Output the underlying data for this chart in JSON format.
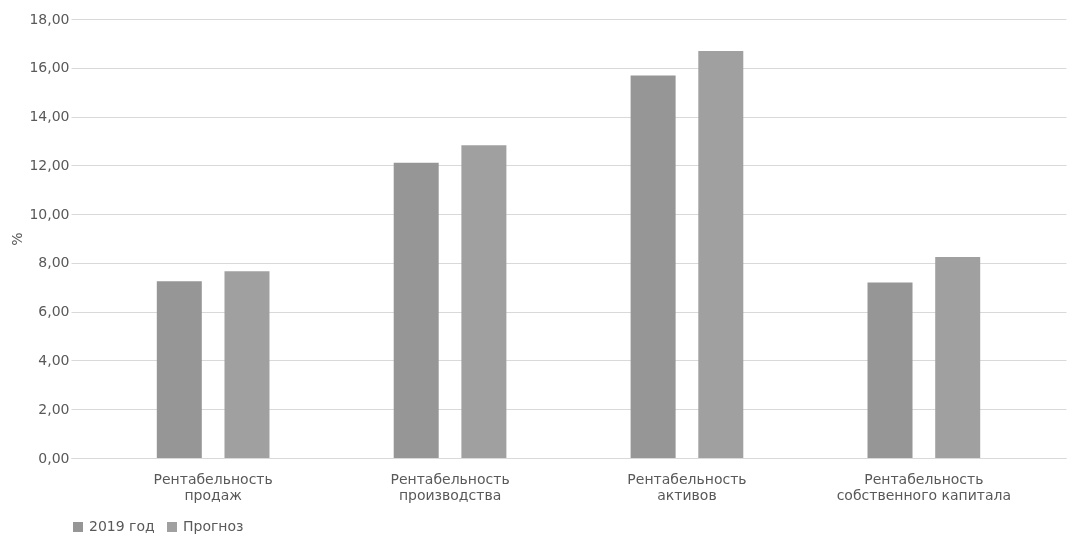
{
  "chart_data": {
    "type": "bar",
    "ylabel": "%",
    "categories": [
      "Рентабельность продаж",
      "Рентабельность производства",
      "Рентабельность активов",
      "Рентабельность собственного капитала"
    ],
    "series": [
      {
        "name": "2019 год",
        "color": "#969696",
        "values": [
          7.25,
          12.11,
          15.68,
          7.2
        ]
      },
      {
        "name": "Прогноз",
        "color": "#a0a0a0",
        "values": [
          7.66,
          12.82,
          16.69,
          8.24
        ]
      }
    ],
    "ylim": [
      0,
      18
    ],
    "yticks": [
      {
        "value": 0,
        "label": "0,00"
      },
      {
        "value": 2,
        "label": "2,00"
      },
      {
        "value": 4,
        "label": "4,00"
      },
      {
        "value": 6,
        "label": "6,00"
      },
      {
        "value": 8,
        "label": "8,00"
      },
      {
        "value": 10,
        "label": "10,00"
      },
      {
        "value": 12,
        "label": "12,00"
      },
      {
        "value": 14,
        "label": "14,00"
      },
      {
        "value": 16,
        "label": "16,00"
      },
      {
        "value": 18,
        "label": "18,00"
      }
    ],
    "grid": "y",
    "legend": "bottom"
  }
}
